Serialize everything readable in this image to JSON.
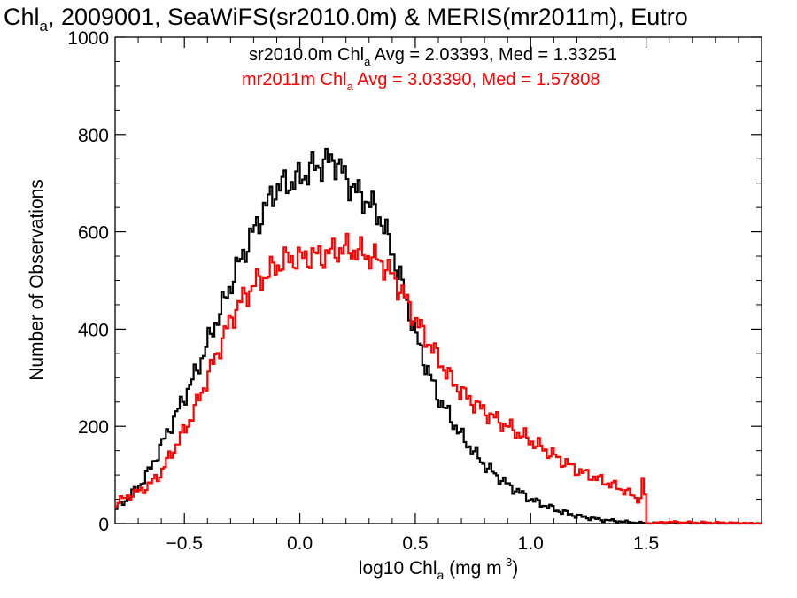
{
  "chart_data": {
    "type": "line",
    "title": {
      "pre": "Chl",
      "sub": "a",
      "post": ", 2009001, SeaWiFS(sr2010.0m) & MERIS(mr2011m), Eutro"
    },
    "xlabel": {
      "pre": "log10 Chl",
      "sub": "a",
      "mid": " (mg m",
      "sup": "-3",
      "post": ")"
    },
    "ylabel": "Number of Observations",
    "xlim": [
      -0.8,
      2.0
    ],
    "ylim": [
      0,
      1000
    ],
    "x_ticks": [
      -0.5,
      0.0,
      0.5,
      1.0,
      1.5
    ],
    "x_tick_labels": [
      "−0.5",
      "0.0",
      "0.5",
      "1.0",
      "1.5"
    ],
    "y_ticks": [
      0,
      200,
      400,
      600,
      800,
      1000
    ],
    "y_tick_labels": [
      "0",
      "200",
      "400",
      "600",
      "800",
      "1000"
    ],
    "grid": false,
    "legend_position": "top-right",
    "annotations": [
      {
        "pre": "sr2010.0m Chl",
        "sub": "a",
        "post": " Avg = 2.03393, Med = 1.33251",
        "color": "#000000"
      },
      {
        "pre": "mr2011m Chl",
        "sub": "a",
        "post": " Avg = 3.03390, Med = 1.57808",
        "color": "#ff0000"
      }
    ],
    "series": [
      {
        "color": "#000000",
        "x": [
          -0.8,
          -0.75,
          -0.7,
          -0.65,
          -0.6,
          -0.55,
          -0.5,
          -0.45,
          -0.4,
          -0.35,
          -0.3,
          -0.25,
          -0.2,
          -0.15,
          -0.1,
          -0.05,
          0.0,
          0.05,
          0.1,
          0.15,
          0.2,
          0.25,
          0.3,
          0.35,
          0.4,
          0.45,
          0.5,
          0.55,
          0.6,
          0.65,
          0.7,
          0.75,
          0.8,
          0.85,
          0.9,
          0.95,
          1.0,
          1.05,
          1.1,
          1.15,
          1.2,
          1.25,
          1.3,
          1.35,
          1.4,
          1.45,
          1.5,
          1.6,
          1.7,
          1.8,
          1.9,
          2.0
        ],
        "values": [
          30,
          50,
          75,
          110,
          160,
          210,
          260,
          310,
          370,
          430,
          490,
          550,
          600,
          650,
          690,
          700,
          710,
          730,
          740,
          750,
          710,
          680,
          660,
          630,
          560,
          480,
          390,
          320,
          260,
          220,
          180,
          150,
          120,
          100,
          80,
          65,
          50,
          40,
          30,
          22,
          16,
          12,
          8,
          6,
          4,
          2,
          1,
          0,
          0,
          0,
          0,
          0
        ]
      },
      {
        "color": "#ff0000",
        "x": [
          -0.8,
          -0.75,
          -0.7,
          -0.65,
          -0.6,
          -0.55,
          -0.5,
          -0.45,
          -0.4,
          -0.35,
          -0.3,
          -0.25,
          -0.2,
          -0.15,
          -0.1,
          -0.05,
          0.0,
          0.05,
          0.1,
          0.15,
          0.2,
          0.25,
          0.3,
          0.35,
          0.4,
          0.45,
          0.5,
          0.55,
          0.6,
          0.65,
          0.7,
          0.75,
          0.8,
          0.85,
          0.9,
          0.95,
          1.0,
          1.05,
          1.1,
          1.15,
          1.2,
          1.25,
          1.3,
          1.35,
          1.4,
          1.45,
          1.48,
          1.49,
          1.5,
          1.6,
          1.7,
          1.8,
          1.9,
          2.0
        ],
        "values": [
          40,
          55,
          65,
          80,
          105,
          150,
          190,
          240,
          300,
          360,
          420,
          460,
          490,
          510,
          530,
          545,
          545,
          550,
          550,
          560,
          565,
          560,
          550,
          540,
          510,
          470,
          420,
          380,
          340,
          300,
          270,
          250,
          230,
          215,
          200,
          185,
          170,
          155,
          140,
          125,
          110,
          100,
          90,
          80,
          70,
          55,
          50,
          120,
          0,
          3,
          2,
          2,
          1,
          0
        ]
      }
    ]
  }
}
